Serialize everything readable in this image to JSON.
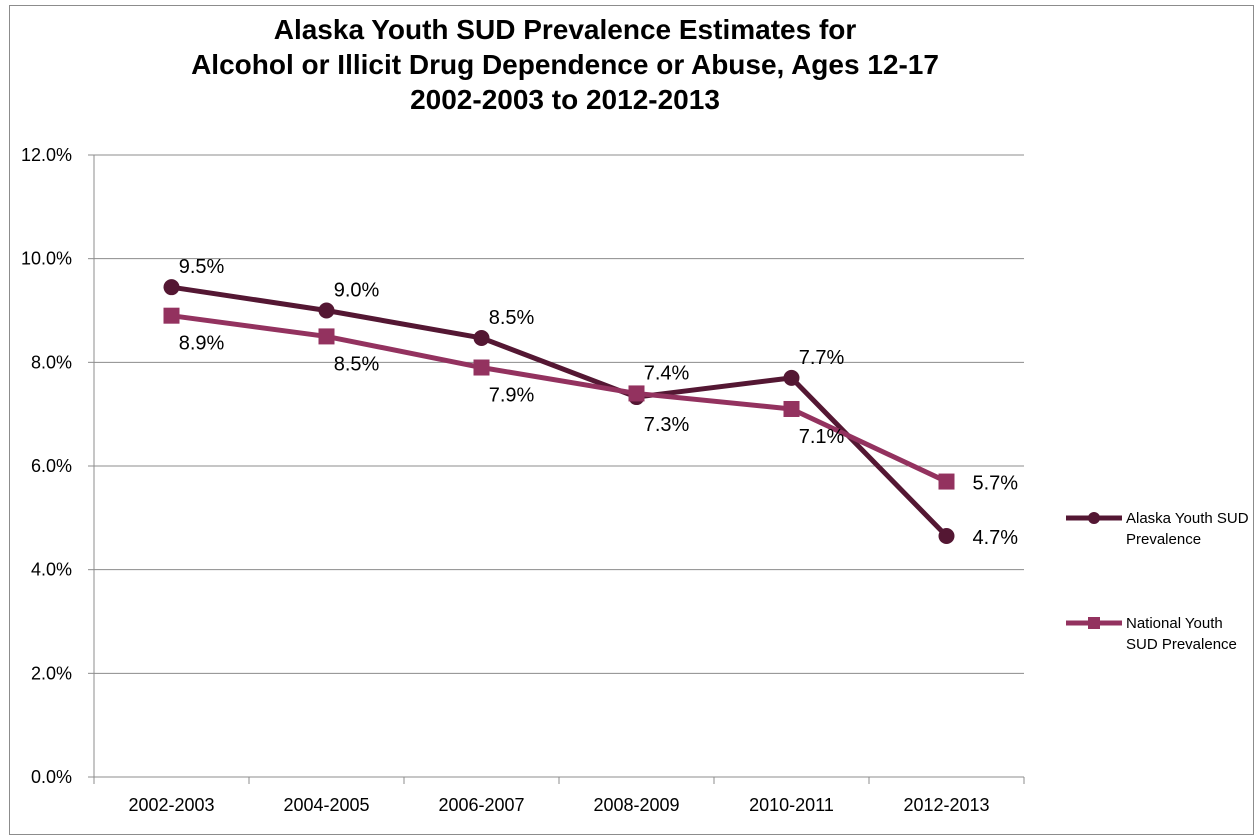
{
  "chart_data": {
    "type": "line",
    "title_lines": [
      "Alaska Youth SUD Prevalence Estimates for",
      "Alcohol or Illicit Drug Dependence or Abuse, Ages 12-17",
      "2002-2003 to 2012-2013"
    ],
    "categories": [
      "2002-2003",
      "2004-2005",
      "2006-2007",
      "2008-2009",
      "2010-2011",
      "2012-2013"
    ],
    "y_ticks": [
      "0.0%",
      "2.0%",
      "4.0%",
      "6.0%",
      "8.0%",
      "10.0%",
      "12.0%"
    ],
    "ylim": [
      0,
      12
    ],
    "grid": true,
    "legend_position": "right",
    "series": [
      {
        "name": "Alaska Youth SUD Prevalence",
        "values": [
          9.45,
          9.0,
          8.47,
          7.33,
          7.7,
          4.65
        ],
        "labels": [
          "9.5%",
          "9.0%",
          "8.5%",
          "7.3%",
          "7.7%",
          "4.7%"
        ],
        "color": "#541733",
        "marker": "circle"
      },
      {
        "name": "National Youth SUD Prevalence",
        "values": [
          8.9,
          8.5,
          7.9,
          7.4,
          7.1,
          5.7
        ],
        "labels": [
          "8.9%",
          "8.5%",
          "7.9%",
          "7.4%",
          "7.1%",
          "5.7%"
        ],
        "color": "#93325f",
        "marker": "square"
      }
    ]
  }
}
